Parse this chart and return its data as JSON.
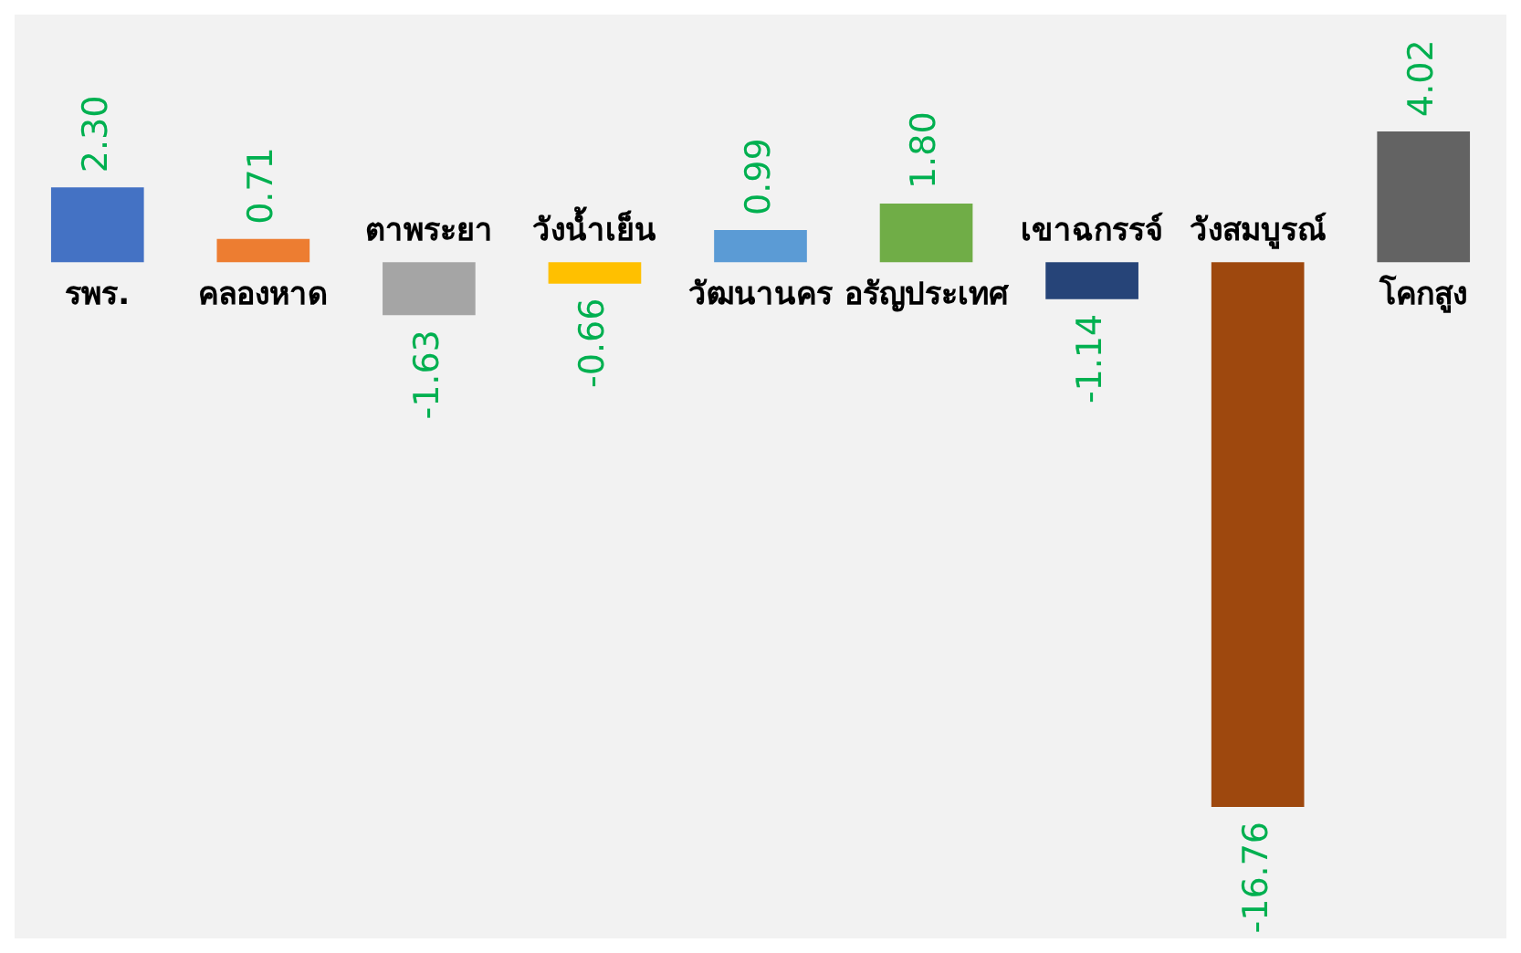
{
  "chart_data": {
    "type": "bar",
    "categories": [
      "รพร.",
      "คลองหาด",
      "ตาพระยา",
      "วังน้ำเย็น",
      "วัฒนานคร",
      "อรัญประเทศ",
      "เขาฉกรรจ์",
      "วังสมบูรณ์",
      "โคกสูง"
    ],
    "values": [
      2.3,
      0.71,
      -1.63,
      -0.66,
      0.99,
      1.8,
      -1.14,
      -16.76,
      4.02
    ],
    "colors": [
      "#4472c4",
      "#ed7d31",
      "#a5a5a5",
      "#ffc000",
      "#5b9bd5",
      "#70ad47",
      "#264478",
      "#9e480e",
      "#636363"
    ],
    "value_labels": [
      "2.30",
      "0.71",
      "-1.63",
      "-0.66",
      "0.99",
      "1.80",
      "-1.14",
      "-16.76",
      "4.02"
    ]
  }
}
